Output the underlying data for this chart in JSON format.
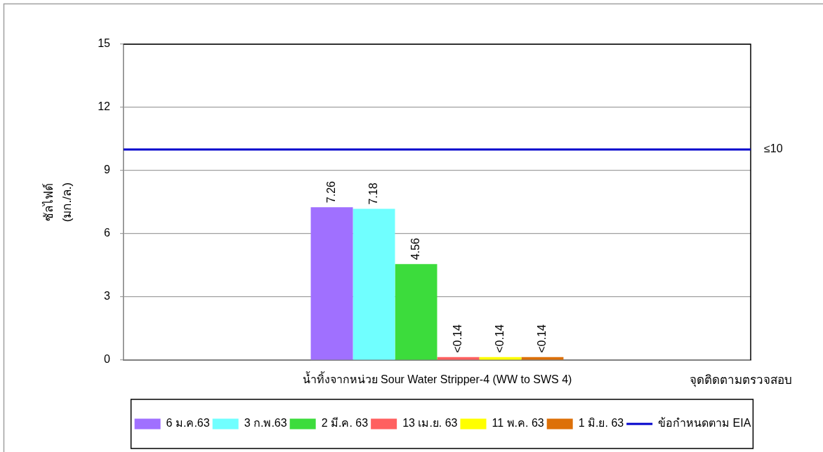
{
  "chart_data": {
    "type": "bar",
    "categories": [
      "น้ำทิ้งจากหน่วย Sour Water Stripper-4 (WW to SWS 4)"
    ],
    "xlabel": "จุดติดตามตรวจสอบ",
    "ylabel": "ซัลไฟด์ (มก./ล.)",
    "series": [
      {
        "name": "6 ม.ค.63",
        "color": "#a070ff",
        "values": [
          7.26
        ],
        "value_labels": [
          "7.26"
        ]
      },
      {
        "name": "3 ก.พ.63",
        "color": "#70ffff",
        "values": [
          7.18
        ],
        "value_labels": [
          "7.18"
        ]
      },
      {
        "name": "2 มี.ค. 63",
        "color": "#3cdc3c",
        "values": [
          4.56
        ],
        "value_labels": [
          "4.56"
        ]
      },
      {
        "name": "13 เม.ย. 63",
        "color": "#ff6060",
        "values": [
          0.14
        ],
        "value_labels": [
          "<0.14"
        ]
      },
      {
        "name": "11 พ.ค. 63",
        "color": "#ffff00",
        "values": [
          0.14
        ],
        "value_labels": [
          "<0.14"
        ]
      },
      {
        "name": "1 มิ.ย. 63",
        "color": "#dd7008",
        "values": [
          0.14
        ],
        "value_labels": [
          "<0.14"
        ]
      }
    ],
    "ylim": [
      0,
      15
    ],
    "yticks": [
      0,
      3,
      6,
      9,
      12,
      15
    ],
    "grid": "y",
    "legend": "bottom",
    "ref_lines": [
      {
        "axis": "y",
        "value": 10,
        "label": "ข้อกำหนดตาม EIA",
        "color": "#0000cc"
      }
    ],
    "annotations": [
      "≤10"
    ]
  }
}
